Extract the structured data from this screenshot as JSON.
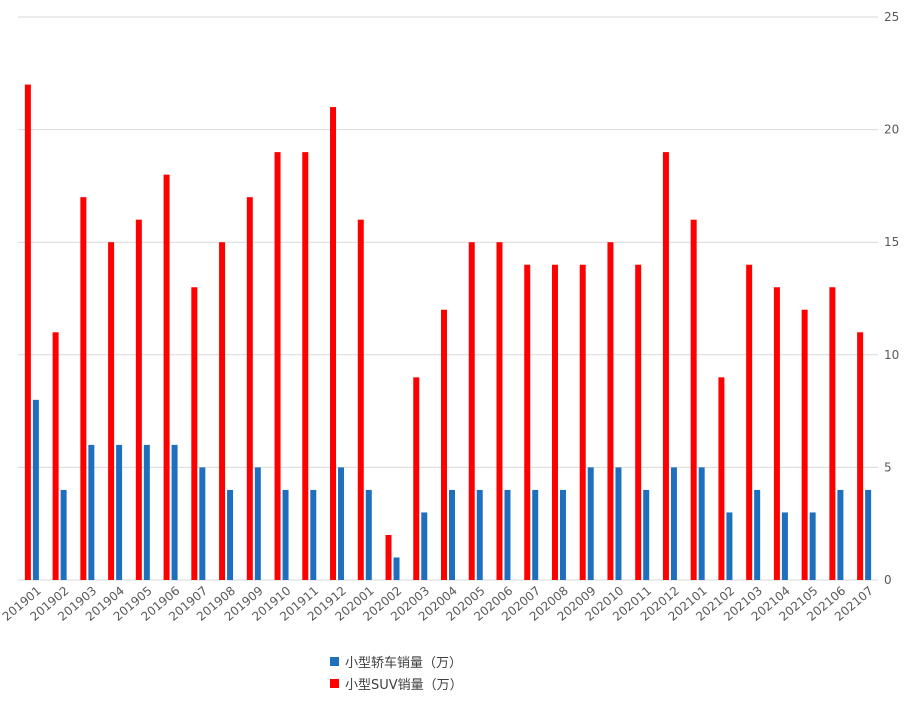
{
  "chart_data": {
    "type": "bar",
    "categories": [
      "201901",
      "201902",
      "201903",
      "201904",
      "201905",
      "201906",
      "201907",
      "201908",
      "201909",
      "201910",
      "201911",
      "201912",
      "202001",
      "202002",
      "202003",
      "202004",
      "202005",
      "202006",
      "202007",
      "202008",
      "202009",
      "202010",
      "202011",
      "202012",
      "202101",
      "202102",
      "202103",
      "202104",
      "202105",
      "202106",
      "202107"
    ],
    "series": [
      {
        "name": "小型SUV销量（万）",
        "color": "#ff0000",
        "values": [
          22,
          11,
          17,
          15,
          16,
          18,
          13,
          15,
          17,
          19,
          19,
          21,
          16,
          2,
          9,
          12,
          15,
          15,
          14,
          14,
          14,
          15,
          14,
          19,
          16,
          9,
          14,
          13,
          12,
          13,
          11
        ]
      },
      {
        "name": "小型轿车销量（万）",
        "color": "#1f6fbf",
        "values": [
          8,
          4,
          6,
          6,
          6,
          6,
          5,
          4,
          5,
          4,
          4,
          5,
          4,
          1,
          3,
          4,
          4,
          4,
          4,
          4,
          5,
          5,
          4,
          5,
          5,
          3,
          4,
          3,
          3,
          4,
          4
        ]
      }
    ],
    "y_ticks": [
      "0",
      "5",
      "10",
      "15",
      "20",
      "25"
    ],
    "ylim": [
      0,
      25
    ],
    "title": "",
    "xlabel": "",
    "ylabel": "",
    "grid": true,
    "legend_position": "bottom"
  },
  "legend": {
    "sedan_label": "小型轿车销量（万）",
    "suv_label": "小型SUV销量（万）",
    "sedan_color": "#1f6fbf",
    "suv_color": "#ff0000"
  }
}
